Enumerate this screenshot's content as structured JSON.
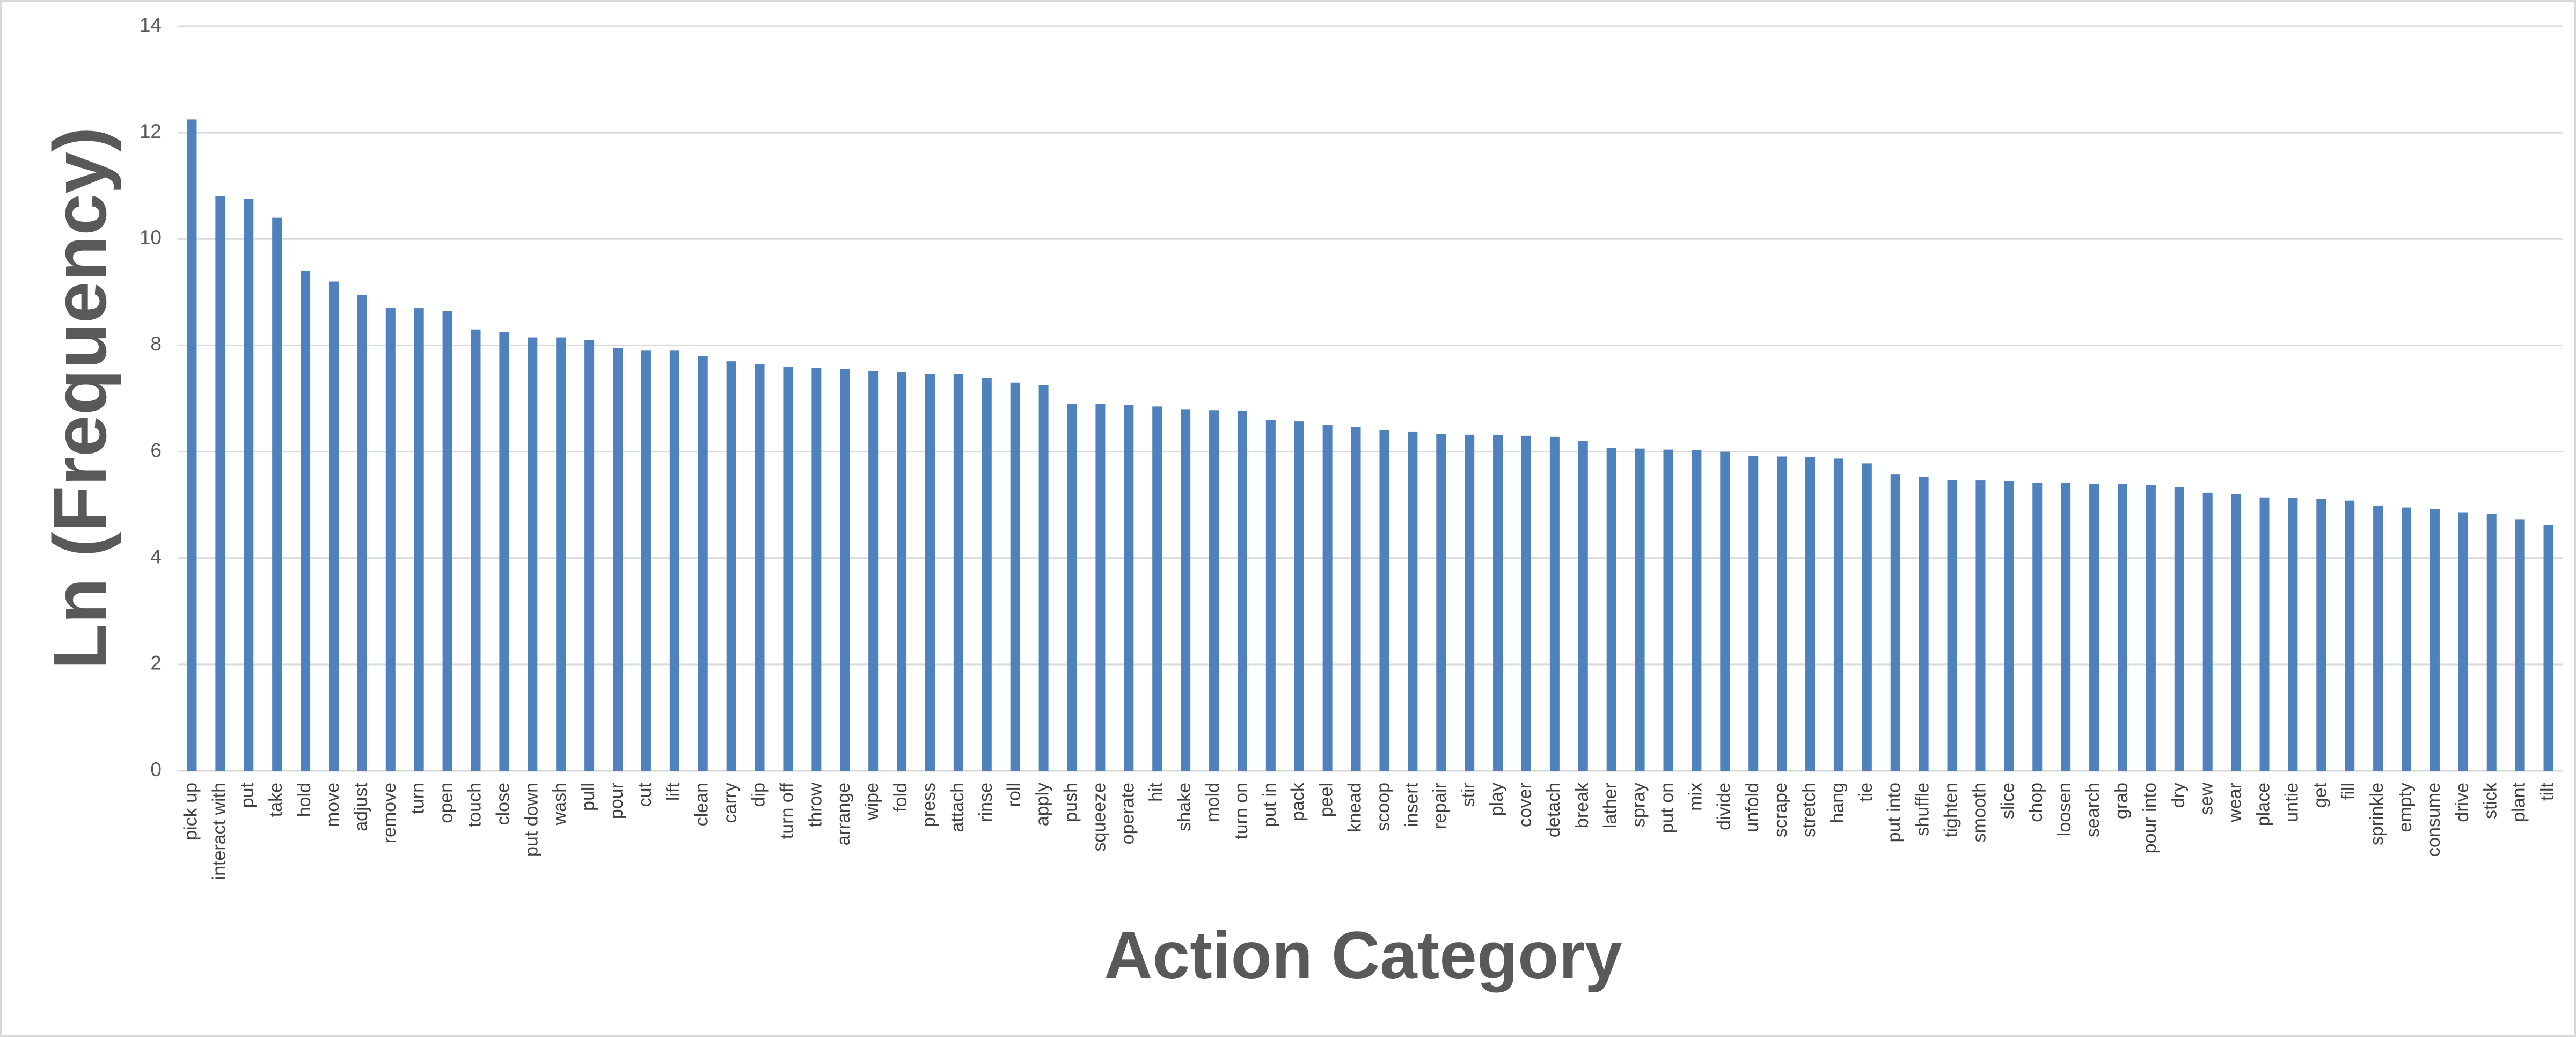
{
  "chart_data": {
    "type": "bar",
    "x_label": "Action Category",
    "y_label": "Ln (Frequency)",
    "categories": [
      "pick up",
      "interact with",
      "put",
      "take",
      "hold",
      "move",
      "adjust",
      "remove",
      "turn",
      "open",
      "touch",
      "close",
      "put down",
      "wash",
      "pull",
      "pour",
      "cut",
      "lift",
      "clean",
      "carry",
      "dip",
      "turn off",
      "throw",
      "arrange",
      "wipe",
      "fold",
      "press",
      "attach",
      "rinse",
      "roll",
      "apply",
      "push",
      "squeeze",
      "operate",
      "hit",
      "shake",
      "mold",
      "turn on",
      "put in",
      "pack",
      "peel",
      "knead",
      "scoop",
      "insert",
      "repair",
      "stir",
      "play",
      "cover",
      "detach",
      "break",
      "lather",
      "spray",
      "put on",
      "mix",
      "divide",
      "unfold",
      "scrape",
      "stretch",
      "hang",
      "tie",
      "put into",
      "shuffle",
      "tighten",
      "smooth",
      "slice",
      "chop",
      "loosen",
      "search",
      "grab",
      "pour into",
      "dry",
      "sew",
      "wear",
      "place",
      "untie",
      "get",
      "fill",
      "sprinkle",
      "empty",
      "consume",
      "drive",
      "stick",
      "plant",
      "tilt"
    ],
    "values": [
      12.25,
      10.8,
      10.75,
      10.4,
      9.4,
      9.2,
      8.95,
      8.7,
      8.7,
      8.65,
      8.3,
      8.25,
      8.15,
      8.15,
      8.1,
      7.95,
      7.9,
      7.9,
      7.8,
      7.7,
      7.65,
      7.6,
      7.58,
      7.55,
      7.52,
      7.5,
      7.47,
      7.46,
      7.38,
      7.3,
      7.25,
      6.9,
      6.9,
      6.88,
      6.85,
      6.8,
      6.78,
      6.77,
      6.6,
      6.57,
      6.5,
      6.47,
      6.4,
      6.38,
      6.33,
      6.32,
      6.31,
      6.3,
      6.28,
      6.2,
      6.07,
      6.06,
      6.04,
      6.03,
      6.0,
      5.92,
      5.91,
      5.9,
      5.87,
      5.78,
      5.57,
      5.53,
      5.47,
      5.46,
      5.45,
      5.42,
      5.41,
      5.4,
      5.39,
      5.37,
      5.33,
      5.23,
      5.2,
      5.14,
      5.13,
      5.11,
      5.08,
      4.98,
      4.95,
      4.92,
      4.86,
      4.83,
      4.73,
      4.62
    ],
    "color": "#4f81bd",
    "ylim": [
      0,
      14
    ],
    "yticks": [
      0,
      2,
      4,
      6,
      8,
      10,
      12,
      14
    ],
    "grid": true
  }
}
